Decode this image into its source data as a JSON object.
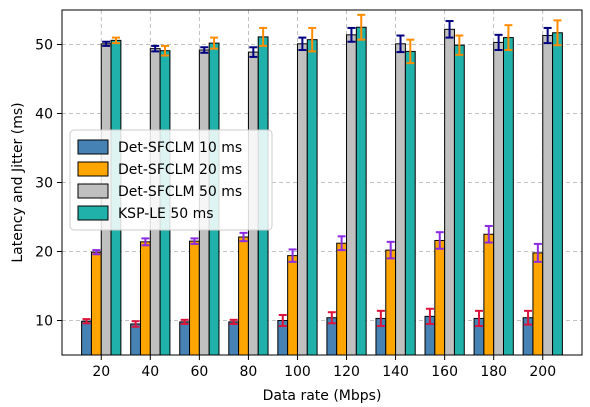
{
  "chart_data": {
    "type": "bar",
    "title": "",
    "xlabel": "Data rate (Mbps)",
    "ylabel": "Latency and Jitter (ms)",
    "categories": [
      "20",
      "40",
      "60",
      "80",
      "100",
      "120",
      "140",
      "160",
      "180",
      "200"
    ],
    "ylim": [
      5,
      55
    ],
    "yticks": [
      10,
      20,
      30,
      40,
      50
    ],
    "grid": true,
    "legend_position": "center-left",
    "series": [
      {
        "name": "Det-SFCLM 10 ms",
        "color": "#4682B4",
        "error_color": "#DC143C",
        "values": [
          9.9,
          9.5,
          9.8,
          9.8,
          10.0,
          10.4,
          10.3,
          10.6,
          10.3,
          10.4
        ],
        "errors": [
          0.3,
          0.4,
          0.3,
          0.3,
          0.8,
          0.8,
          1.1,
          1.1,
          1.1,
          1.0
        ]
      },
      {
        "name": "Det-SFCLM 20 ms",
        "color": "#FFA500",
        "error_color": "#8A2BE2",
        "values": [
          19.9,
          21.4,
          21.5,
          22.1,
          19.4,
          21.2,
          20.2,
          21.6,
          22.5,
          19.8
        ],
        "errors": [
          0.3,
          0.5,
          0.4,
          0.6,
          0.9,
          1.0,
          1.2,
          1.2,
          1.2,
          1.3
        ]
      },
      {
        "name": "Det-SFCLM 50 ms",
        "color": "#C0C0C0",
        "error_color": "#000080",
        "values": [
          50.1,
          49.4,
          49.2,
          48.9,
          50.1,
          51.4,
          50.1,
          52.2,
          50.3,
          51.3
        ],
        "errors": [
          0.3,
          0.4,
          0.4,
          0.7,
          0.9,
          1.0,
          1.2,
          1.2,
          1.1,
          1.1
        ]
      },
      {
        "name": "KSP-LE 50 ms",
        "color": "#20B2AA",
        "error_color": "#FF8C00",
        "values": [
          50.6,
          49.1,
          50.2,
          51.1,
          50.7,
          52.5,
          49.0,
          49.9,
          51.0,
          51.7
        ],
        "errors": [
          0.4,
          0.7,
          0.8,
          1.3,
          1.7,
          1.8,
          1.7,
          1.4,
          1.8,
          1.8
        ]
      }
    ]
  }
}
